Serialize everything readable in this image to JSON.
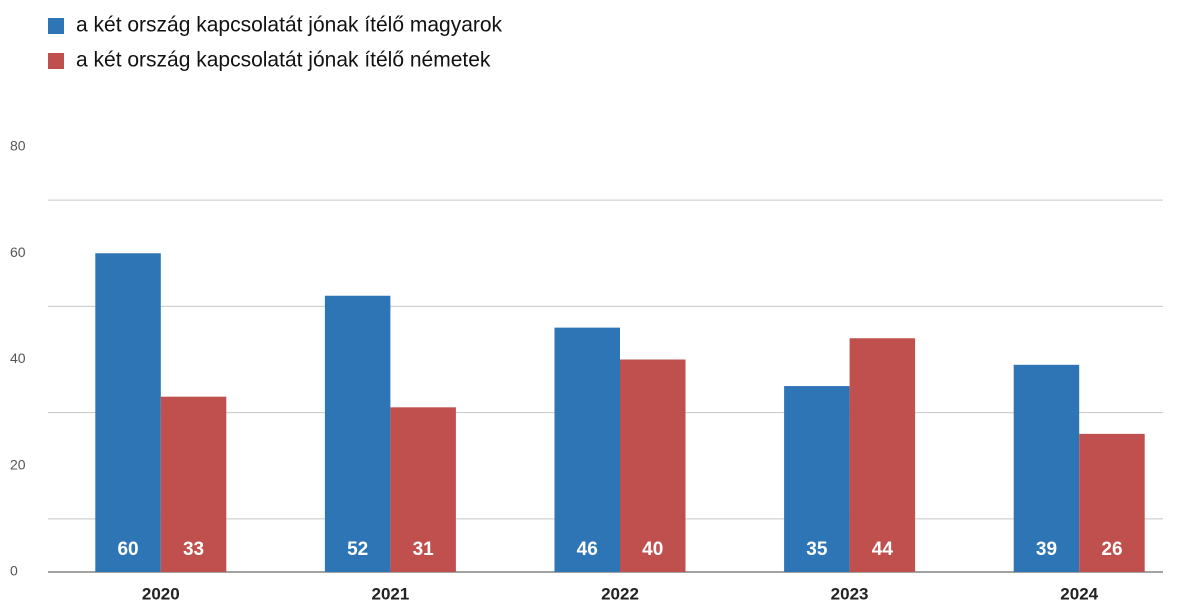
{
  "chart_data": {
    "type": "bar",
    "categories": [
      "2020",
      "2021",
      "2022",
      "2023",
      "2024"
    ],
    "series": [
      {
        "name": "a két ország kapcsolatát jónak ítélő magyarok",
        "color": "#2e75b6",
        "values": [
          60,
          52,
          46,
          35,
          39
        ]
      },
      {
        "name": "a két ország kapcsolatát jónak ítélő németek",
        "color": "#c0504d",
        "values": [
          33,
          31,
          40,
          44,
          26
        ]
      }
    ],
    "ylim": [
      0,
      80
    ],
    "yticks": [
      0,
      20,
      40,
      60,
      80
    ],
    "grid_lines": [
      10,
      30,
      50,
      70
    ],
    "legend": "top-left"
  }
}
